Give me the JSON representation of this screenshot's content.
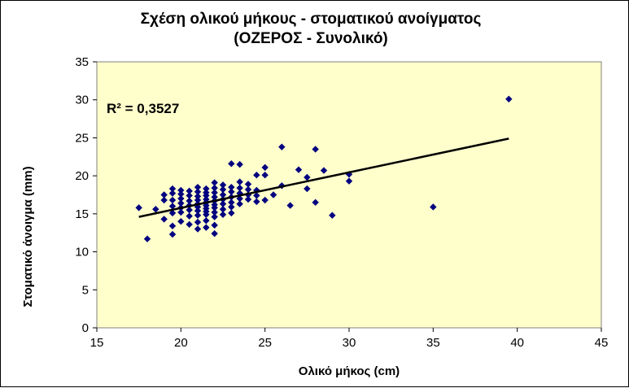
{
  "chart_data": {
    "type": "scatter",
    "title": "Σχέση ολικού  μήκους - στοματικού  ανοίγματος",
    "subtitle": "(ΟΖΕΡΟΣ - Συνολικό)",
    "xlabel": "Ολικό μήκος (cm)",
    "ylabel": "Στοματικό  άνοιγμα (mm)",
    "xlim": [
      15,
      45
    ],
    "ylim": [
      0,
      35
    ],
    "xticks": [
      15,
      20,
      25,
      30,
      35,
      40,
      45
    ],
    "yticks": [
      0,
      5,
      10,
      15,
      20,
      25,
      30,
      35
    ],
    "grid": false,
    "legend": "none",
    "plot_background": "#FFFFCC",
    "marker_color": "#000080",
    "trendline_color": "#000000",
    "annotation": "R² = 0,3527",
    "trendline": {
      "x": [
        17.5,
        39.5
      ],
      "y": [
        14.6,
        24.9
      ]
    },
    "points": [
      [
        17.5,
        15.8
      ],
      [
        18,
        11.7
      ],
      [
        18.5,
        15.6
      ],
      [
        19,
        14.3
      ],
      [
        19,
        16.8
      ],
      [
        19,
        17.5
      ],
      [
        19.5,
        12.3
      ],
      [
        19.5,
        13.4
      ],
      [
        19.5,
        15.1
      ],
      [
        19.5,
        16
      ],
      [
        19.5,
        16.8
      ],
      [
        19.5,
        17.7
      ],
      [
        19.5,
        18.3
      ],
      [
        20,
        14
      ],
      [
        20,
        15.2
      ],
      [
        20,
        15.8
      ],
      [
        20,
        16.4
      ],
      [
        20,
        17
      ],
      [
        20,
        17.6
      ],
      [
        20,
        18.1
      ],
      [
        20.5,
        13.6
      ],
      [
        20.5,
        14.7
      ],
      [
        20.5,
        15.5
      ],
      [
        20.5,
        16.1
      ],
      [
        20.5,
        16.7
      ],
      [
        20.5,
        17.4
      ],
      [
        20.5,
        18
      ],
      [
        21,
        13
      ],
      [
        21,
        13.9
      ],
      [
        21,
        14.8
      ],
      [
        21,
        15.4
      ],
      [
        21,
        15.9
      ],
      [
        21,
        16.3
      ],
      [
        21,
        16.8
      ],
      [
        21,
        17.3
      ],
      [
        21,
        17.9
      ],
      [
        21,
        18.5
      ],
      [
        21.5,
        13.2
      ],
      [
        21.5,
        14.1
      ],
      [
        21.5,
        14.9
      ],
      [
        21.5,
        15.3
      ],
      [
        21.5,
        15.7
      ],
      [
        21.5,
        16.1
      ],
      [
        21.5,
        16.5
      ],
      [
        21.5,
        16.9
      ],
      [
        21.5,
        17.4
      ],
      [
        21.5,
        17.8
      ],
      [
        21.5,
        18.3
      ],
      [
        22,
        12.4
      ],
      [
        22,
        13.5
      ],
      [
        22,
        14.6
      ],
      [
        22,
        15.2
      ],
      [
        22,
        15.8
      ],
      [
        22,
        16.2
      ],
      [
        22,
        16.7
      ],
      [
        22,
        17.2
      ],
      [
        22,
        17.8
      ],
      [
        22,
        18.4
      ],
      [
        22,
        19.1
      ],
      [
        22.5,
        14.9
      ],
      [
        22.5,
        15.6
      ],
      [
        22.5,
        16.3
      ],
      [
        22.5,
        16.9
      ],
      [
        22.5,
        17.5
      ],
      [
        22.5,
        18.2
      ],
      [
        22.5,
        18.8
      ],
      [
        23,
        15.1
      ],
      [
        23,
        15.9
      ],
      [
        23,
        16.5
      ],
      [
        23,
        17.2
      ],
      [
        23,
        17.9
      ],
      [
        23,
        18.5
      ],
      [
        23,
        21.6
      ],
      [
        23.5,
        16.3
      ],
      [
        23.5,
        17
      ],
      [
        23.5,
        17.7
      ],
      [
        23.5,
        18.4
      ],
      [
        23.5,
        19.2
      ],
      [
        23.5,
        21.5
      ],
      [
        24,
        16.9
      ],
      [
        24,
        17.5
      ],
      [
        24,
        18.2
      ],
      [
        24,
        18.9
      ],
      [
        24.5,
        16.6
      ],
      [
        24.5,
        17.4
      ],
      [
        24.5,
        18.1
      ],
      [
        24.5,
        20.1
      ],
      [
        25,
        16.8
      ],
      [
        25,
        20.1
      ],
      [
        25,
        21.1
      ],
      [
        25.5,
        17.5
      ],
      [
        26,
        18.7
      ],
      [
        26,
        23.8
      ],
      [
        26.5,
        16.1
      ],
      [
        27,
        20.8
      ],
      [
        27.5,
        18.3
      ],
      [
        27.5,
        19.8
      ],
      [
        28,
        16.5
      ],
      [
        28,
        23.5
      ],
      [
        28.5,
        20.7
      ],
      [
        29,
        14.8
      ],
      [
        30,
        19.3
      ],
      [
        30,
        20.2
      ],
      [
        35,
        15.9
      ],
      [
        39.5,
        30.1
      ]
    ]
  }
}
